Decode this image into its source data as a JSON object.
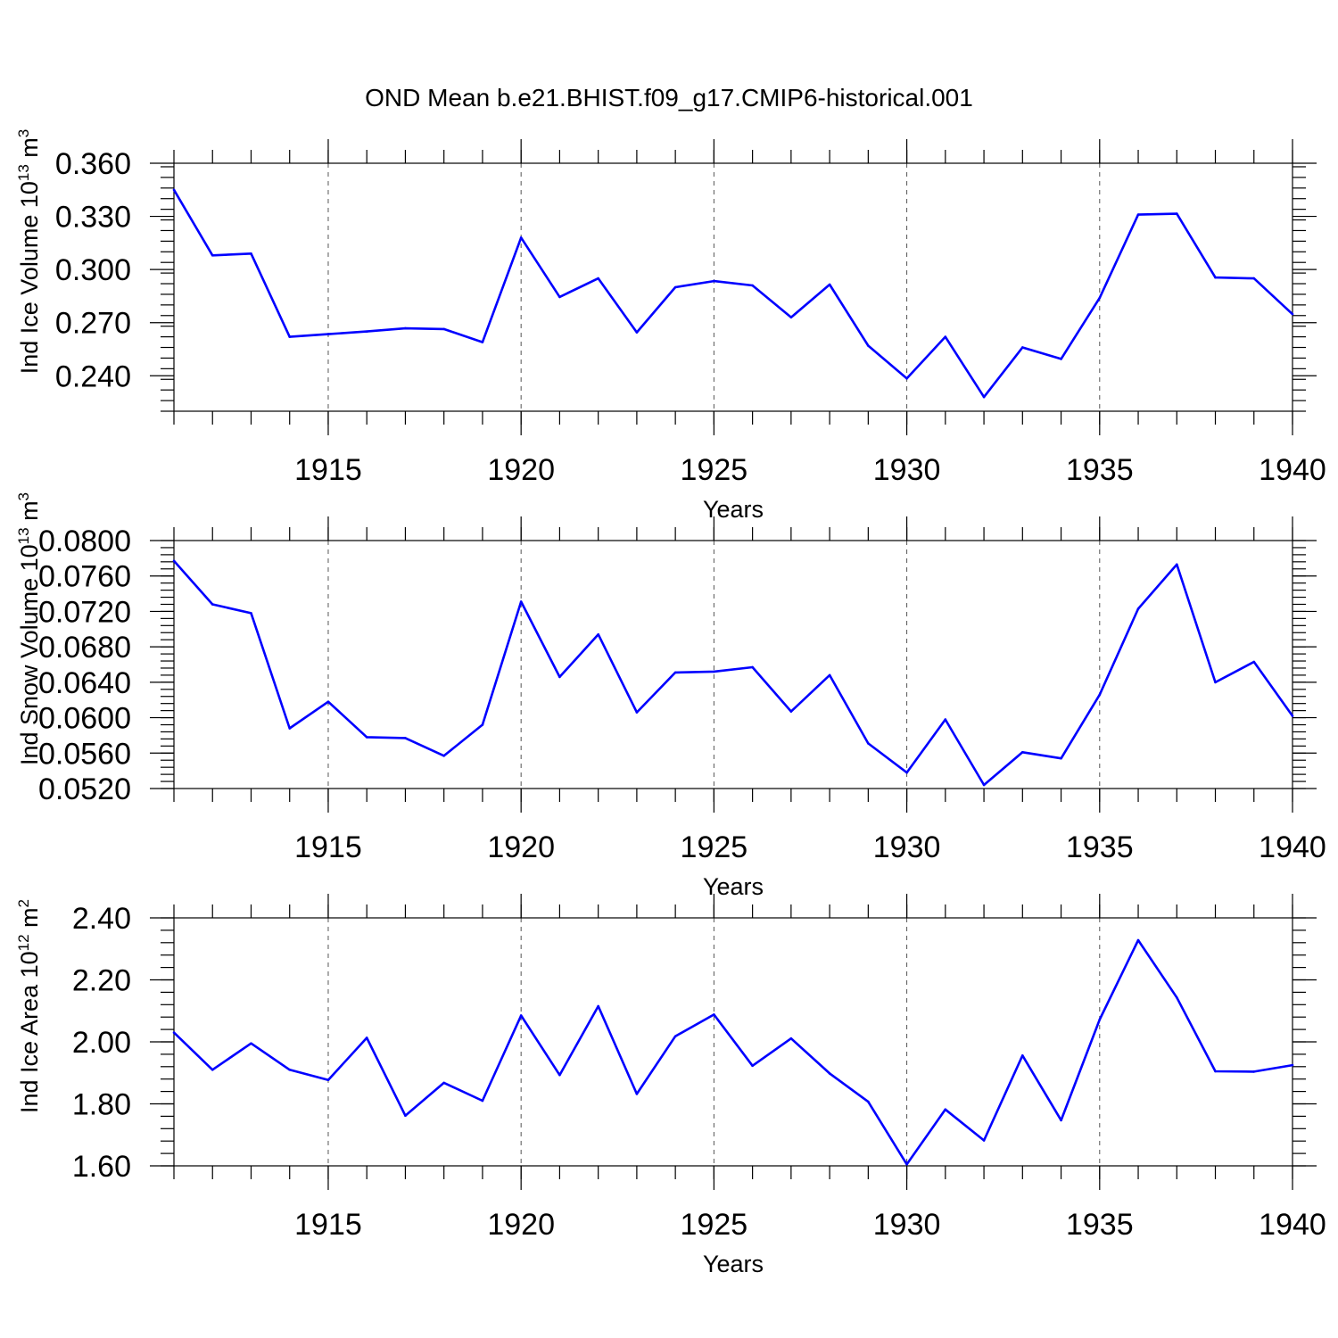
{
  "title": "OND Mean b.e21.BHIST.f09_g17.CMIP6-historical.001",
  "colors": {
    "series": "#0000ff",
    "axis": "#000000",
    "grid": "#555555"
  },
  "chart_data": [
    {
      "type": "line",
      "ylabel": "Ind Ice Volume 10",
      "ylabel_sup": "13",
      "ylabel_unit": " m",
      "ylabel_unit_sup": "3",
      "xlabel": "Years",
      "xlim": [
        1911,
        1940
      ],
      "ylim": [
        0.22,
        0.36
      ],
      "yticks": [
        0.24,
        0.27,
        0.3,
        0.33,
        0.36
      ],
      "ytick_labels": [
        "0.240",
        "0.270",
        "0.300",
        "0.330",
        "0.360"
      ],
      "yminor_step": 0.006,
      "xticks": [
        1915,
        1920,
        1925,
        1930,
        1935,
        1940
      ],
      "xtick_labels": [
        "1915",
        "1920",
        "1925",
        "1930",
        "1935",
        "1940"
      ],
      "grid": "vertical dashed at major x ticks",
      "series": [
        {
          "name": "Ind Ice Volume",
          "x": [
            1911,
            1912,
            1913,
            1914,
            1915,
            1916,
            1917,
            1918,
            1919,
            1920,
            1921,
            1922,
            1923,
            1924,
            1925,
            1926,
            1927,
            1928,
            1929,
            1930,
            1931,
            1932,
            1933,
            1934,
            1935,
            1936,
            1937,
            1938,
            1939,
            1940
          ],
          "values": [
            0.345,
            0.308,
            0.309,
            0.262,
            0.2635,
            0.265,
            0.2668,
            0.2664,
            0.259,
            0.318,
            0.2845,
            0.295,
            0.2645,
            0.29,
            0.2935,
            0.291,
            0.273,
            0.2915,
            0.257,
            0.2385,
            0.262,
            0.228,
            0.256,
            0.2495,
            0.284,
            0.331,
            0.3315,
            0.2955,
            0.295,
            0.2748
          ]
        }
      ]
    },
    {
      "type": "line",
      "ylabel": "Ind Snow Volume 10",
      "ylabel_sup": "13",
      "ylabel_unit": " m",
      "ylabel_unit_sup": "3",
      "xlabel": "Years",
      "xlim": [
        1911,
        1940
      ],
      "ylim": [
        0.052,
        0.08
      ],
      "yticks": [
        0.052,
        0.056,
        0.06,
        0.064,
        0.068,
        0.072,
        0.076,
        0.08
      ],
      "ytick_labels": [
        "0.0520",
        "0.0560",
        "0.0600",
        "0.0640",
        "0.0680",
        "0.0720",
        "0.0760",
        "0.0800"
      ],
      "yminor_step": 0.0008,
      "xticks": [
        1915,
        1920,
        1925,
        1930,
        1935,
        1940
      ],
      "xtick_labels": [
        "1915",
        "1920",
        "1925",
        "1930",
        "1935",
        "1940"
      ],
      "grid": "vertical dashed at major x ticks",
      "series": [
        {
          "name": "Ind Snow Volume",
          "x": [
            1911,
            1912,
            1913,
            1914,
            1915,
            1916,
            1917,
            1918,
            1919,
            1920,
            1921,
            1922,
            1923,
            1924,
            1925,
            1926,
            1927,
            1928,
            1929,
            1930,
            1931,
            1932,
            1933,
            1934,
            1935,
            1936,
            1937,
            1938,
            1939,
            1940
          ],
          "values": [
            0.0777,
            0.0728,
            0.0718,
            0.0588,
            0.0618,
            0.0578,
            0.0577,
            0.0557,
            0.0592,
            0.0731,
            0.0646,
            0.0694,
            0.0606,
            0.0651,
            0.0652,
            0.0657,
            0.0607,
            0.0648,
            0.0571,
            0.0538,
            0.0598,
            0.0524,
            0.0561,
            0.0554,
            0.0626,
            0.0723,
            0.0773,
            0.064,
            0.0663,
            0.0602
          ]
        }
      ]
    },
    {
      "type": "line",
      "ylabel": "Ind Ice Area 10",
      "ylabel_sup": "12",
      "ylabel_unit": " m",
      "ylabel_unit_sup": "2",
      "xlabel": "Years",
      "xlim": [
        1911,
        1940
      ],
      "ylim": [
        1.6,
        2.4
      ],
      "yticks": [
        1.6,
        1.8,
        2.0,
        2.2,
        2.4
      ],
      "ytick_labels": [
        "1.60",
        "1.80",
        "2.00",
        "2.20",
        "2.40"
      ],
      "yminor_step": 0.04,
      "xticks": [
        1915,
        1920,
        1925,
        1930,
        1935,
        1940
      ],
      "xtick_labels": [
        "1915",
        "1920",
        "1925",
        "1930",
        "1935",
        "1940"
      ],
      "grid": "vertical dashed at major x ticks",
      "series": [
        {
          "name": "Ind Ice Area",
          "x": [
            1911,
            1912,
            1913,
            1914,
            1915,
            1916,
            1917,
            1918,
            1919,
            1920,
            1921,
            1922,
            1923,
            1924,
            1925,
            1926,
            1927,
            1928,
            1929,
            1930,
            1931,
            1932,
            1933,
            1934,
            1935,
            1936,
            1937,
            1938,
            1939,
            1940
          ],
          "values": [
            2.03,
            1.91,
            1.995,
            1.91,
            1.877,
            2.013,
            1.762,
            1.868,
            1.81,
            2.085,
            1.893,
            2.115,
            1.832,
            2.018,
            2.088,
            1.923,
            2.011,
            1.898,
            1.807,
            1.605,
            1.782,
            1.682,
            1.956,
            1.747,
            2.072,
            2.328,
            2.143,
            1.905,
            1.904,
            1.925
          ]
        }
      ]
    }
  ]
}
